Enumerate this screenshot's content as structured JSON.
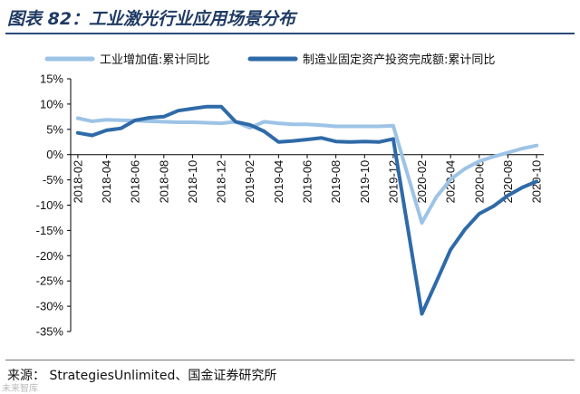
{
  "title": "图表 82：工业激光行业应用场景分布",
  "source": "来源：  StrategiesUnlimited、国金证券研究所",
  "watermark": "未来智库",
  "chart_data": {
    "type": "line",
    "ylim": [
      -35,
      15
    ],
    "y_ticks": [
      15,
      10,
      5,
      0,
      -5,
      -10,
      -15,
      -20,
      -25,
      -30,
      -35
    ],
    "y_tick_labels": [
      "15%",
      "10%",
      "5%",
      "0%",
      "-5%",
      "-10%",
      "-15%",
      "-20%",
      "-25%",
      "-30%",
      "-35%"
    ],
    "x_tick_labels": [
      "2018-02",
      "2018-04",
      "2018-06",
      "2018-08",
      "2018-10",
      "2018-12",
      "2019-02",
      "2019-04",
      "2019-06",
      "2019-08",
      "2019-10",
      "2019-12",
      "2020-02",
      "2020-04",
      "2020-06",
      "2020-08",
      "2020-10"
    ],
    "x": [
      "2018-02",
      "2018-03",
      "2018-04",
      "2018-05",
      "2018-06",
      "2018-07",
      "2018-08",
      "2018-09",
      "2018-10",
      "2018-11",
      "2018-12",
      "2019-01",
      "2019-02",
      "2019-03",
      "2019-04",
      "2019-05",
      "2019-06",
      "2019-07",
      "2019-08",
      "2019-09",
      "2019-10",
      "2019-11",
      "2019-12",
      "2020-02",
      "2020-03",
      "2020-04",
      "2020-05",
      "2020-06",
      "2020-07",
      "2020-08",
      "2020-09",
      "2020-10"
    ],
    "legend_position": "top",
    "grid": false,
    "series": [
      {
        "name": "工业增加值:累计同比",
        "color": "#9dc3e6",
        "values": [
          7.2,
          6.6,
          6.9,
          6.8,
          6.7,
          6.6,
          6.5,
          6.4,
          6.4,
          6.3,
          6.2,
          6.5,
          5.3,
          6.5,
          6.2,
          6.0,
          6.0,
          5.8,
          5.6,
          5.6,
          5.6,
          5.6,
          5.7,
          -13.5,
          -8.4,
          -4.9,
          -2.8,
          -1.3,
          -0.4,
          0.4,
          1.2,
          1.8
        ]
      },
      {
        "name": "制造业固定资产投资完成额:累计同比",
        "color": "#2f6aa8",
        "values": [
          4.3,
          3.8,
          4.8,
          5.2,
          6.8,
          7.3,
          7.5,
          8.7,
          9.1,
          9.5,
          9.5,
          6.5,
          5.9,
          4.6,
          2.5,
          2.7,
          3.0,
          3.3,
          2.6,
          2.5,
          2.6,
          2.5,
          3.1,
          -31.5,
          -25.2,
          -18.8,
          -14.8,
          -11.7,
          -10.2,
          -8.1,
          -6.5,
          -5.3
        ]
      }
    ]
  }
}
